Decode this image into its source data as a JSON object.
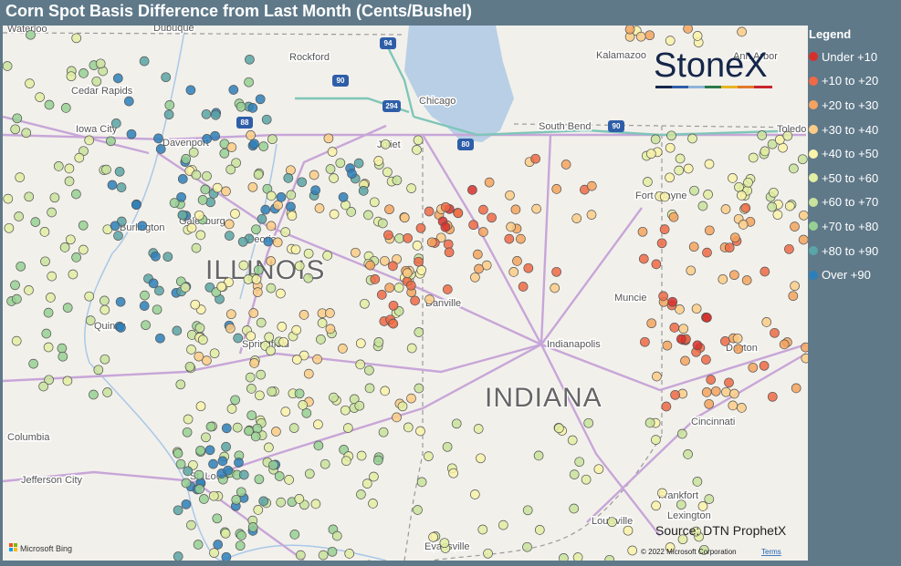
{
  "header": {
    "title": "Corn Spot Basis Difference from Last Month (Cents/Bushel)"
  },
  "legend": {
    "title": "Legend",
    "items": [
      {
        "label": "Under +10",
        "color": "#d7302b"
      },
      {
        "label": "+10 to +20",
        "color": "#ef6a45"
      },
      {
        "label": "+20 to +30",
        "color": "#f5a35e"
      },
      {
        "label": "+30 to +40",
        "color": "#fbcc86"
      },
      {
        "label": "+40 to +50",
        "color": "#faf3a9"
      },
      {
        "label": "+50 to +60",
        "color": "#e3efa2"
      },
      {
        "label": "+60 to +70",
        "color": "#c9e39c"
      },
      {
        "label": "+70 to +80",
        "color": "#98d093"
      },
      {
        "label": "+80 to +90",
        "color": "#5aa5a5"
      },
      {
        "label": "Over +90",
        "color": "#2d7fba"
      }
    ]
  },
  "logo": "StoneX",
  "map": {
    "states": [
      "ILLINOIS",
      "INDIANA"
    ],
    "cities": [
      "Waterloo",
      "Dubuque",
      "Rockford",
      "Cedar Rapids",
      "Iowa City",
      "Davenport",
      "Galesburg",
      "Burlington",
      "Peoria",
      "Quincy",
      "Springfield",
      "Chicago",
      "Joliet",
      "Danville",
      "Kalamazoo",
      "Ann Arbor",
      "South Bend",
      "Toledo",
      "Fort Wayne",
      "Muncie",
      "Indianapolis",
      "Dayton",
      "Cincinnati",
      "Columbia",
      "Jefferson City",
      "St. Louis",
      "Evansville",
      "Louisville",
      "Frankfort",
      "Lexington"
    ],
    "highways": [
      "94",
      "90",
      "294",
      "88",
      "80",
      "90"
    ]
  },
  "source": "Source: DTN ProphetX",
  "footer": {
    "brand": "Microsoft Bing",
    "copyright": "© 2022 Microsoft Corporation",
    "terms": "Terms"
  }
}
